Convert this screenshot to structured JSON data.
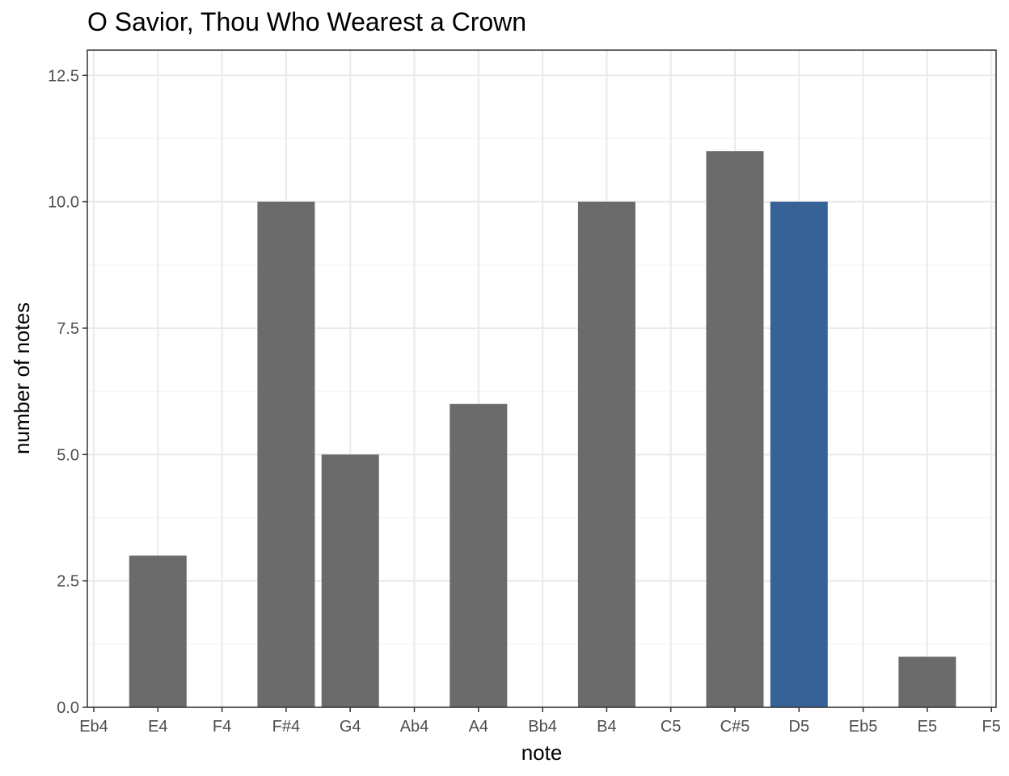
{
  "chart_data": {
    "type": "bar",
    "title": "O Savior, Thou Who Wearest a Crown",
    "xlabel": "note",
    "ylabel": "number of notes",
    "x_tick_labels": [
      "Eb4",
      "E4",
      "F4",
      "F#4",
      "G4",
      "Ab4",
      "A4",
      "Bb4",
      "B4",
      "C5",
      "C#5",
      "D5",
      "Eb5",
      "E5",
      "F5"
    ],
    "categories": [
      "E4",
      "F#4",
      "G4",
      "A4",
      "B4",
      "C#5",
      "D5",
      "E5"
    ],
    "values": [
      3,
      10,
      5,
      6,
      10,
      11,
      10,
      1
    ],
    "bar_positions": [
      1,
      3,
      4,
      6,
      8,
      10,
      11,
      13
    ],
    "highlight": "D5",
    "ylim": [
      0,
      13
    ],
    "yticks": [
      0,
      2.5,
      5,
      7.5,
      10,
      12.5
    ],
    "ytick_labels": [
      "0.0",
      "2.5",
      "5.0",
      "7.5",
      "10.0",
      "12.5"
    ],
    "colors": {
      "bar": "#6b6b6b",
      "highlight": "#376298",
      "grid_major": "#ebebeb",
      "grid_minor": "#f4f4f4",
      "panel_border": "#333333"
    },
    "grid": true,
    "legend": "none"
  }
}
